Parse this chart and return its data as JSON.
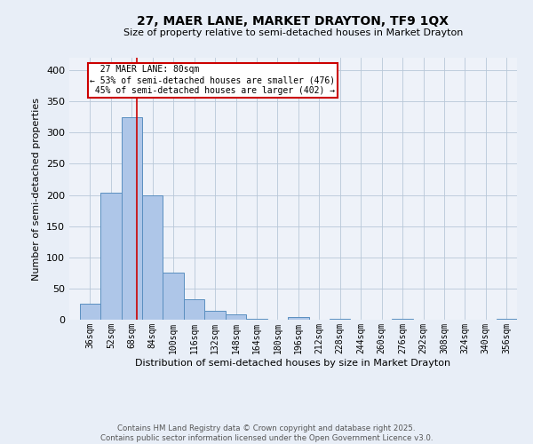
{
  "title": "27, MAER LANE, MARKET DRAYTON, TF9 1QX",
  "subtitle": "Size of property relative to semi-detached houses in Market Drayton",
  "xlabel": "Distribution of semi-detached houses by size in Market Drayton",
  "ylabel": "Number of semi-detached properties",
  "footer_line1": "Contains HM Land Registry data © Crown copyright and database right 2025.",
  "footer_line2": "Contains public sector information licensed under the Open Government Licence v3.0.",
  "property_size": 80,
  "property_label": "27 MAER LANE: 80sqm",
  "pct_smaller": 53,
  "pct_larger": 45,
  "count_smaller": 476,
  "count_larger": 402,
  "categories": [
    "36sqm",
    "52sqm",
    "68sqm",
    "84sqm",
    "100sqm",
    "116sqm",
    "132sqm",
    "148sqm",
    "164sqm",
    "180sqm",
    "196sqm",
    "212sqm",
    "228sqm",
    "244sqm",
    "260sqm",
    "276sqm",
    "292sqm",
    "308sqm",
    "324sqm",
    "340sqm",
    "356sqm"
  ],
  "bin_edges": [
    36,
    52,
    68,
    84,
    100,
    116,
    132,
    148,
    164,
    180,
    196,
    212,
    228,
    244,
    260,
    276,
    292,
    308,
    324,
    340,
    356
  ],
  "bar_values": [
    25,
    203,
    325,
    200,
    75,
    33,
    14,
    9,
    2,
    0,
    4,
    0,
    2,
    0,
    0,
    1,
    0,
    0,
    0,
    0,
    2
  ],
  "bar_color": "#aec6e8",
  "bar_edge_color": "#5a8fc0",
  "line_color": "#cc0000",
  "annotation_box_edge_color": "#cc0000",
  "bg_color": "#e8eef7",
  "plot_bg_color": "#eef2f9",
  "ylim": [
    0,
    420
  ],
  "yticks": [
    0,
    50,
    100,
    150,
    200,
    250,
    300,
    350,
    400
  ]
}
